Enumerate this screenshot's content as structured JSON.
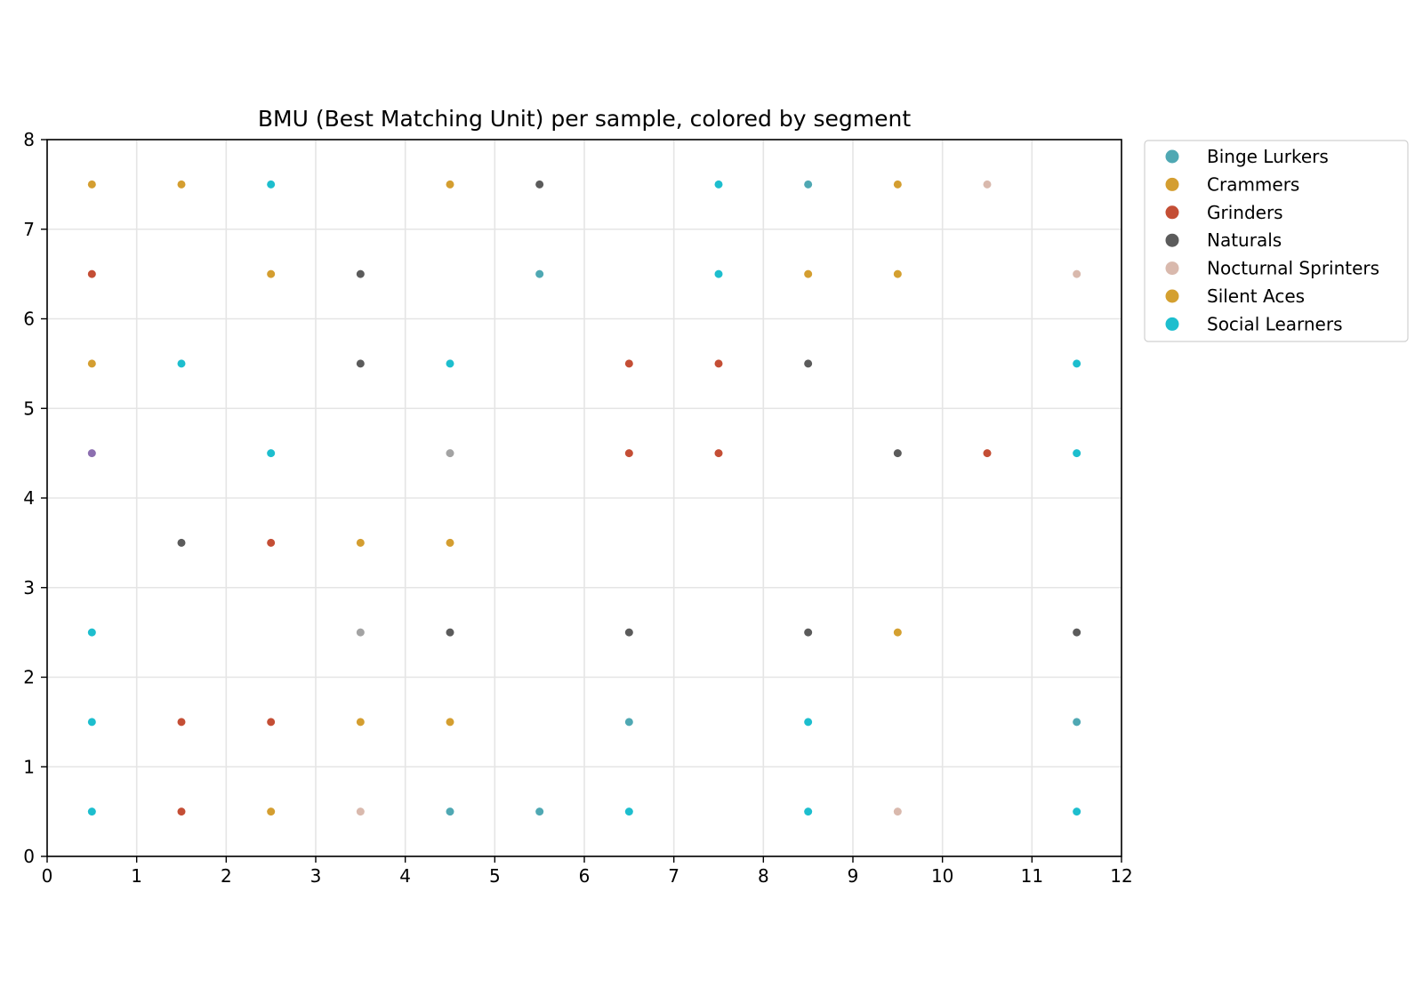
{
  "chart_data": {
    "type": "scatter",
    "title": "BMU (Best Matching Unit) per sample, colored by segment",
    "xlabel": "",
    "ylabel": "",
    "xlim": [
      0,
      12
    ],
    "ylim": [
      0,
      8
    ],
    "xticks": [
      "0",
      "1",
      "2",
      "3",
      "4",
      "5",
      "6",
      "7",
      "8",
      "9",
      "10",
      "11",
      "12"
    ],
    "yticks": [
      "0",
      "1",
      "2",
      "3",
      "4",
      "5",
      "6",
      "7",
      "8"
    ],
    "grid": true,
    "legend_position": "outside-top-right",
    "series": [
      {
        "name": "Binge Lurkers",
        "color": "#4fa8b3",
        "points": [
          [
            8.5,
            7.5
          ],
          [
            5.5,
            6.5
          ],
          [
            11.5,
            1.5
          ],
          [
            4.5,
            0.5
          ],
          [
            5.5,
            0.5
          ],
          [
            6.5,
            1.5
          ]
        ]
      },
      {
        "name": "Crammers",
        "color": "#d49e30",
        "points": [
          [
            0.5,
            7.5
          ],
          [
            1.5,
            7.5
          ],
          [
            4.5,
            7.5
          ],
          [
            9.5,
            7.5
          ],
          [
            2.5,
            6.5
          ],
          [
            8.5,
            6.5
          ],
          [
            0.5,
            5.5
          ],
          [
            3.5,
            3.5
          ],
          [
            4.5,
            3.5
          ],
          [
            3.5,
            1.5
          ],
          [
            4.5,
            1.5
          ],
          [
            2.5,
            0.5
          ]
        ]
      },
      {
        "name": "Grinders",
        "color": "#c44e35",
        "points": [
          [
            0.5,
            6.5
          ],
          [
            6.5,
            5.5
          ],
          [
            7.5,
            5.5
          ],
          [
            6.5,
            4.5
          ],
          [
            7.5,
            4.5
          ],
          [
            10.5,
            4.5
          ],
          [
            2.5,
            3.5
          ],
          [
            1.5,
            1.5
          ],
          [
            2.5,
            1.5
          ],
          [
            1.5,
            0.5
          ]
        ]
      },
      {
        "name": "Naturals",
        "color": "#5b5b5b",
        "points": [
          [
            5.5,
            7.5
          ],
          [
            3.5,
            6.5
          ],
          [
            3.5,
            5.5
          ],
          [
            8.5,
            5.5
          ],
          [
            9.5,
            4.5
          ],
          [
            1.5,
            3.5
          ],
          [
            4.5,
            2.5
          ],
          [
            6.5,
            2.5
          ],
          [
            8.5,
            2.5
          ],
          [
            11.5,
            2.5
          ]
        ]
      },
      {
        "name": "Nocturnal Sprinters",
        "color": "#d9b9ad",
        "points": [
          [
            10.5,
            7.5
          ],
          [
            11.5,
            6.5
          ],
          [
            3.5,
            0.5
          ],
          [
            9.5,
            0.5
          ]
        ]
      },
      {
        "name": "Silent Aces",
        "color": "#d4a030",
        "points": [
          [
            9.5,
            6.5
          ],
          [
            9.5,
            2.5
          ]
        ]
      },
      {
        "name": "Social Learners",
        "color": "#1dbece",
        "points": [
          [
            2.5,
            7.5
          ],
          [
            7.5,
            7.5
          ],
          [
            7.5,
            6.5
          ],
          [
            1.5,
            5.5
          ],
          [
            4.5,
            5.5
          ],
          [
            11.5,
            5.5
          ],
          [
            2.5,
            4.5
          ],
          [
            11.5,
            4.5
          ],
          [
            0.5,
            2.5
          ],
          [
            0.5,
            1.5
          ],
          [
            8.5,
            1.5
          ],
          [
            0.5,
            0.5
          ],
          [
            6.5,
            0.5
          ],
          [
            8.5,
            0.5
          ],
          [
            11.5,
            0.5
          ]
        ]
      }
    ],
    "unlabeled_points": [
      {
        "color": "#8c6fb0",
        "x": 0.5,
        "y": 4.5
      },
      {
        "color": "#a3a3a3",
        "x": 4.5,
        "y": 4.5
      },
      {
        "color": "#a3a3a3",
        "x": 3.5,
        "y": 2.5
      }
    ]
  }
}
